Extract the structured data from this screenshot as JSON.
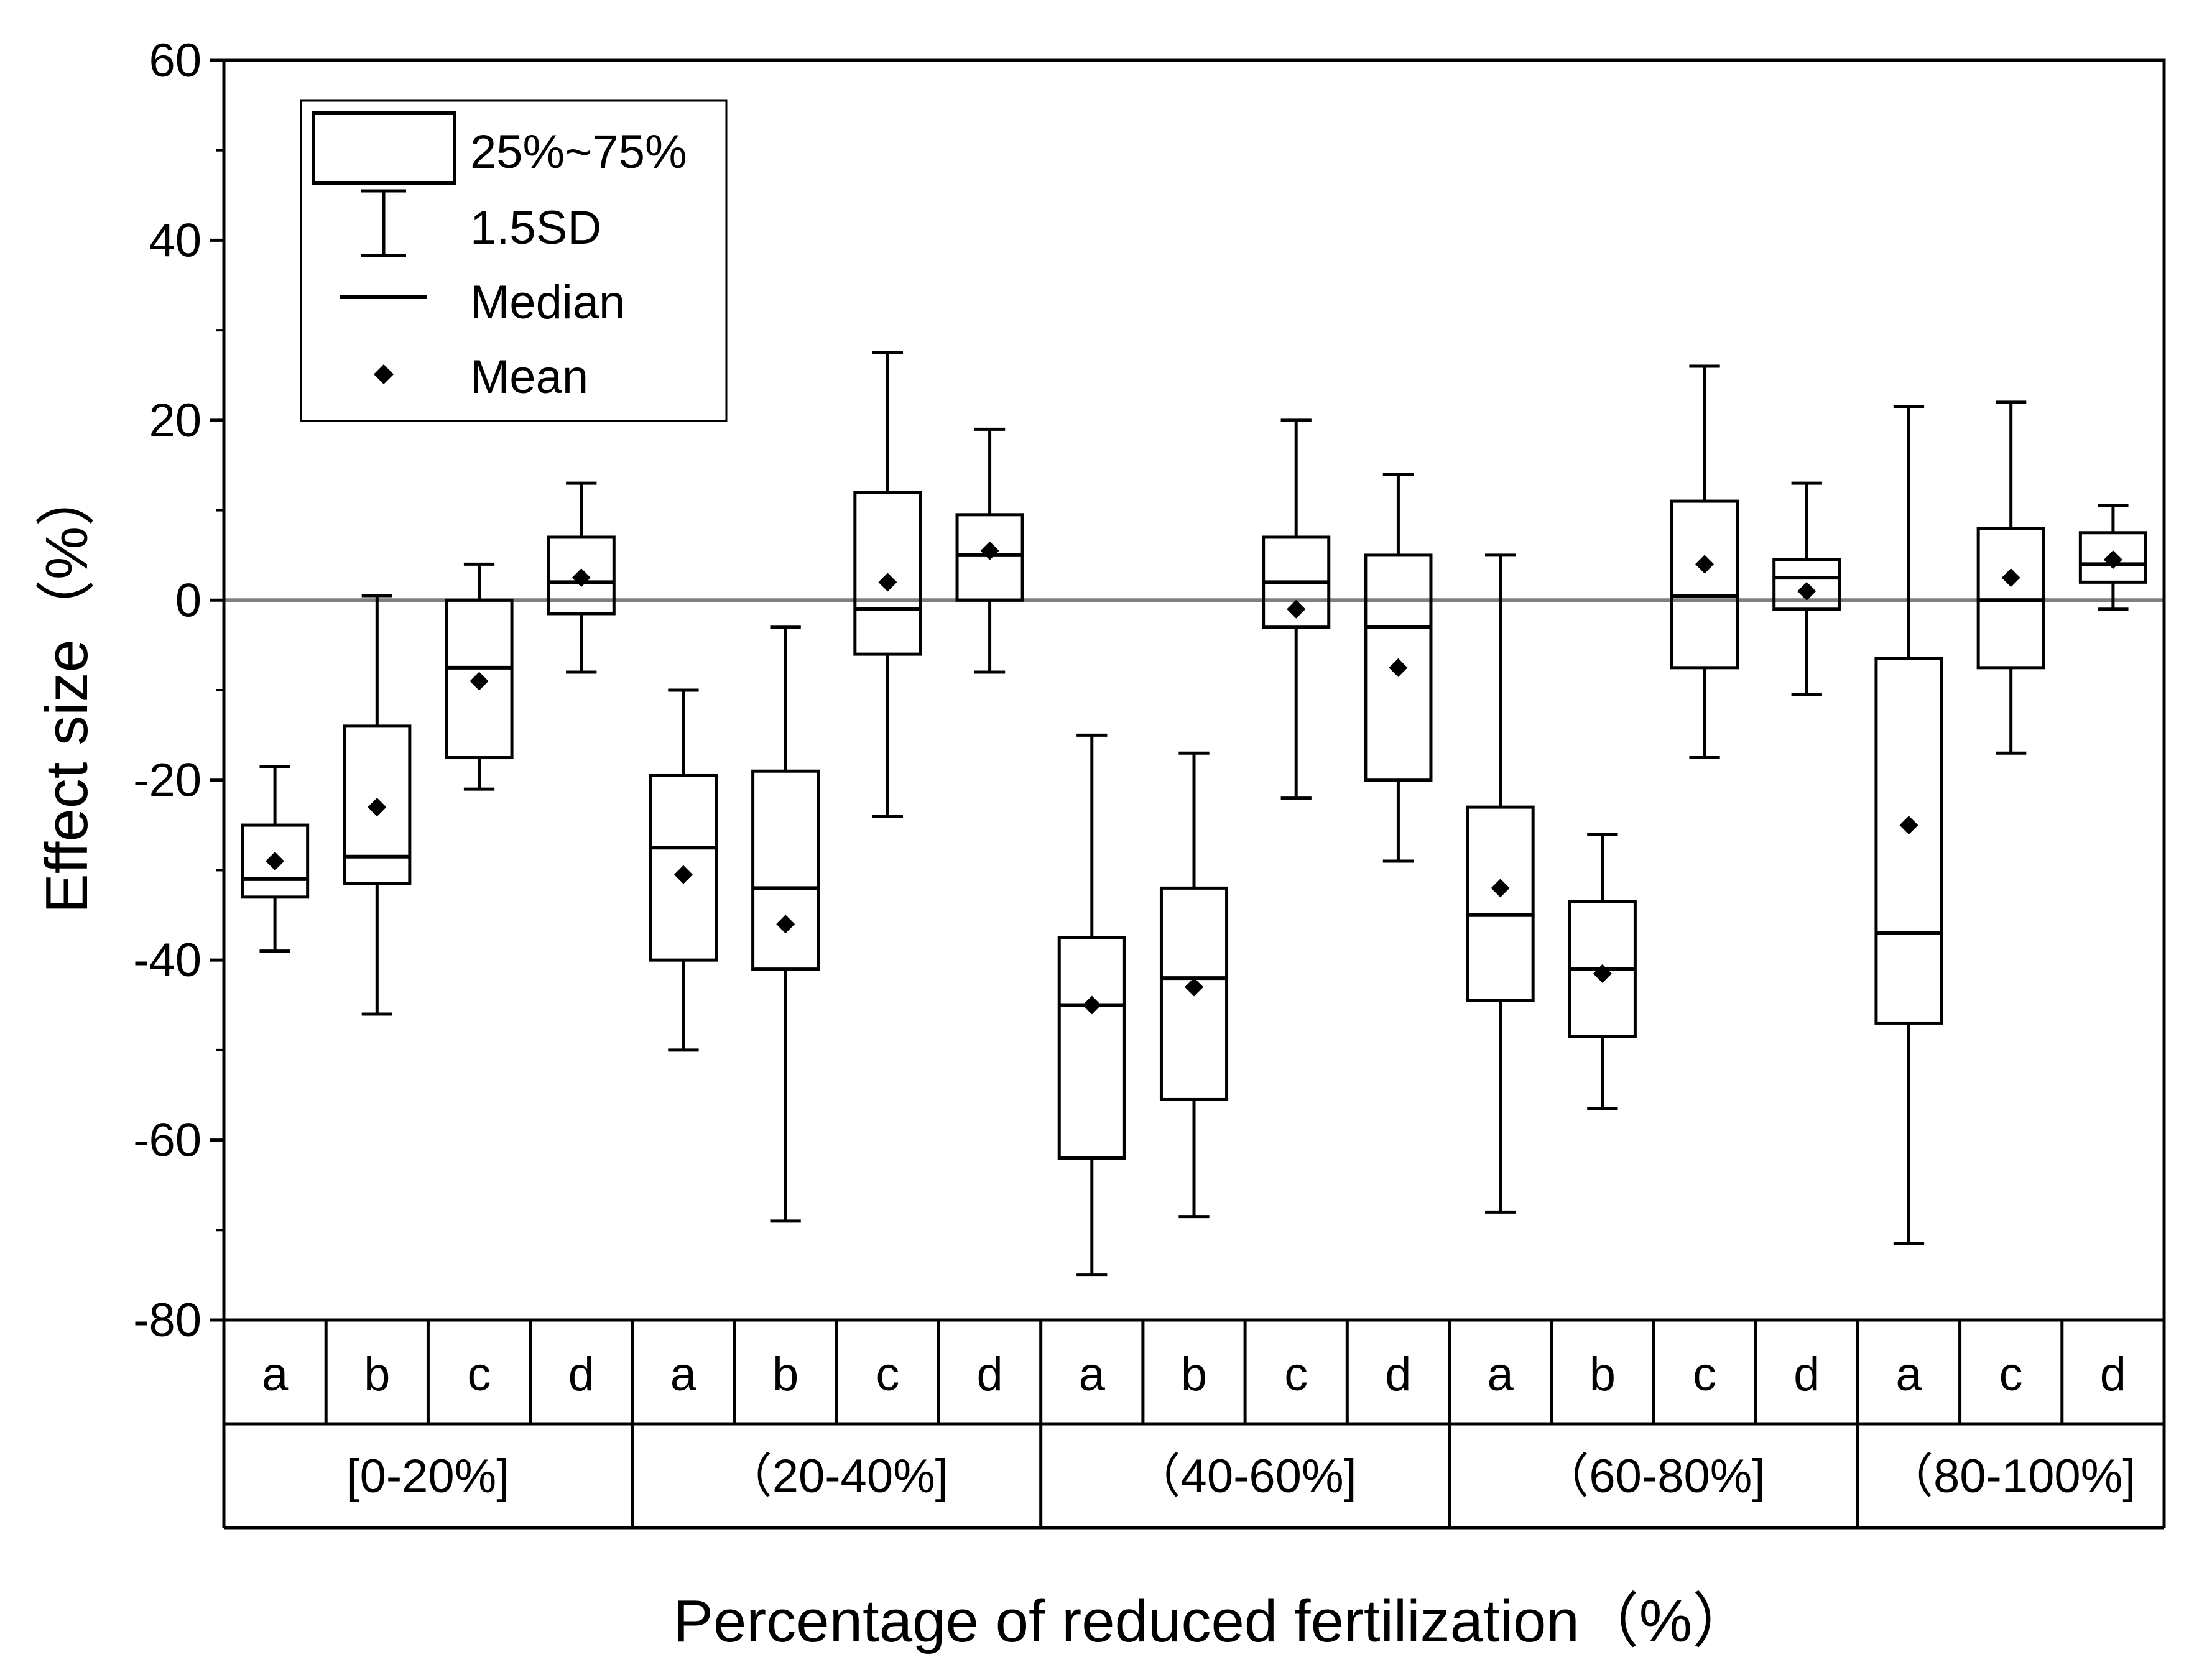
{
  "chart_data": {
    "type": "box",
    "title": "",
    "xlabel": "Percentage of reduced fertilization（%）",
    "ylabel": "Effect size（%）",
    "ylim": [
      -80,
      60
    ],
    "yticks": [
      60,
      40,
      20,
      0,
      -20,
      -40,
      -60,
      -80
    ],
    "reference_line": 0,
    "legend": {
      "position": "top-left",
      "items": [
        {
          "symbol": "box",
          "label": "25%~75%"
        },
        {
          "symbol": "whisker",
          "label": "1.5SD"
        },
        {
          "symbol": "median",
          "label": "Median"
        },
        {
          "symbol": "mean",
          "label": "Mean"
        }
      ]
    },
    "groups": [
      {
        "label": "[0-20%]",
        "categories": [
          "a",
          "b",
          "c",
          "d"
        ]
      },
      {
        "label": "（20-40%]",
        "categories": [
          "a",
          "b",
          "c",
          "d"
        ]
      },
      {
        "label": "（40-60%]",
        "categories": [
          "a",
          "b",
          "c",
          "d"
        ]
      },
      {
        "label": "（60-80%]",
        "categories": [
          "a",
          "b",
          "c",
          "d"
        ]
      },
      {
        "label": "（80-100%]",
        "categories": [
          "a",
          "c",
          "d"
        ]
      }
    ],
    "boxes": [
      {
        "group": "[0-20%]",
        "category": "a",
        "whisker_low": -39,
        "q1": -33,
        "median": -31,
        "q3": -25,
        "whisker_high": -18.5,
        "mean": -29
      },
      {
        "group": "[0-20%]",
        "category": "b",
        "whisker_low": -46,
        "q1": -31.5,
        "median": -28.5,
        "q3": -14,
        "whisker_high": 0.5,
        "mean": -23
      },
      {
        "group": "[0-20%]",
        "category": "c",
        "whisker_low": -21,
        "q1": -17.5,
        "median": -7.5,
        "q3": 0,
        "whisker_high": 4,
        "mean": -9
      },
      {
        "group": "[0-20%]",
        "category": "d",
        "whisker_low": -8,
        "q1": -1.5,
        "median": 2,
        "q3": 7,
        "whisker_high": 13,
        "mean": 2.5
      },
      {
        "group": "（20-40%]",
        "category": "a",
        "whisker_low": -50,
        "q1": -40,
        "median": -27.5,
        "q3": -19.5,
        "whisker_high": -10,
        "mean": -30.5
      },
      {
        "group": "（20-40%]",
        "category": "b",
        "whisker_low": -69,
        "q1": -41,
        "median": -32,
        "q3": -19,
        "whisker_high": -3,
        "mean": -36
      },
      {
        "group": "（20-40%]",
        "category": "c",
        "whisker_low": -24,
        "q1": -6,
        "median": -1,
        "q3": 12,
        "whisker_high": 27.5,
        "mean": 2
      },
      {
        "group": "（20-40%]",
        "category": "d",
        "whisker_low": -8,
        "q1": 0,
        "median": 5,
        "q3": 9.5,
        "whisker_high": 19,
        "mean": 5.5
      },
      {
        "group": "（40-60%]",
        "category": "a",
        "whisker_low": -75,
        "q1": -62,
        "median": -45,
        "q3": -37.5,
        "whisker_high": -15,
        "mean": -45
      },
      {
        "group": "（40-60%]",
        "category": "b",
        "whisker_low": -68.5,
        "q1": -55.5,
        "median": -42,
        "q3": -32,
        "whisker_high": -17,
        "mean": -43
      },
      {
        "group": "（40-60%]",
        "category": "c",
        "whisker_low": -22,
        "q1": -3,
        "median": 2,
        "q3": 7,
        "whisker_high": 20,
        "mean": -1
      },
      {
        "group": "（40-60%]",
        "category": "d",
        "whisker_low": -29,
        "q1": -20,
        "median": -3,
        "q3": 5,
        "whisker_high": 14,
        "mean": -7.5
      },
      {
        "group": "（60-80%]",
        "category": "a",
        "whisker_low": -68,
        "q1": -44.5,
        "median": -35,
        "q3": -23,
        "whisker_high": 5,
        "mean": -32
      },
      {
        "group": "（60-80%]",
        "category": "b",
        "whisker_low": -56.5,
        "q1": -48.5,
        "median": -41,
        "q3": -33.5,
        "whisker_high": -26,
        "mean": -41.5
      },
      {
        "group": "（60-80%]",
        "category": "c",
        "whisker_low": -17.5,
        "q1": -7.5,
        "median": 0.5,
        "q3": 11,
        "whisker_high": 26,
        "mean": 4
      },
      {
        "group": "（60-80%]",
        "category": "d",
        "whisker_low": -10.5,
        "q1": -1,
        "median": 2.5,
        "q3": 4.5,
        "whisker_high": 13,
        "mean": 1
      },
      {
        "group": "（80-100%]",
        "category": "a",
        "whisker_low": -71.5,
        "q1": -47,
        "median": -37,
        "q3": -6.5,
        "whisker_high": 21.5,
        "mean": -25
      },
      {
        "group": "（80-100%]",
        "category": "c",
        "whisker_low": -17,
        "q1": -7.5,
        "median": 0,
        "q3": 8,
        "whisker_high": 22,
        "mean": 2.5
      },
      {
        "group": "（80-100%]",
        "category": "d",
        "whisker_low": -1,
        "q1": 2,
        "median": 4,
        "q3": 7.5,
        "whisker_high": 10.5,
        "mean": 4.5
      }
    ]
  }
}
